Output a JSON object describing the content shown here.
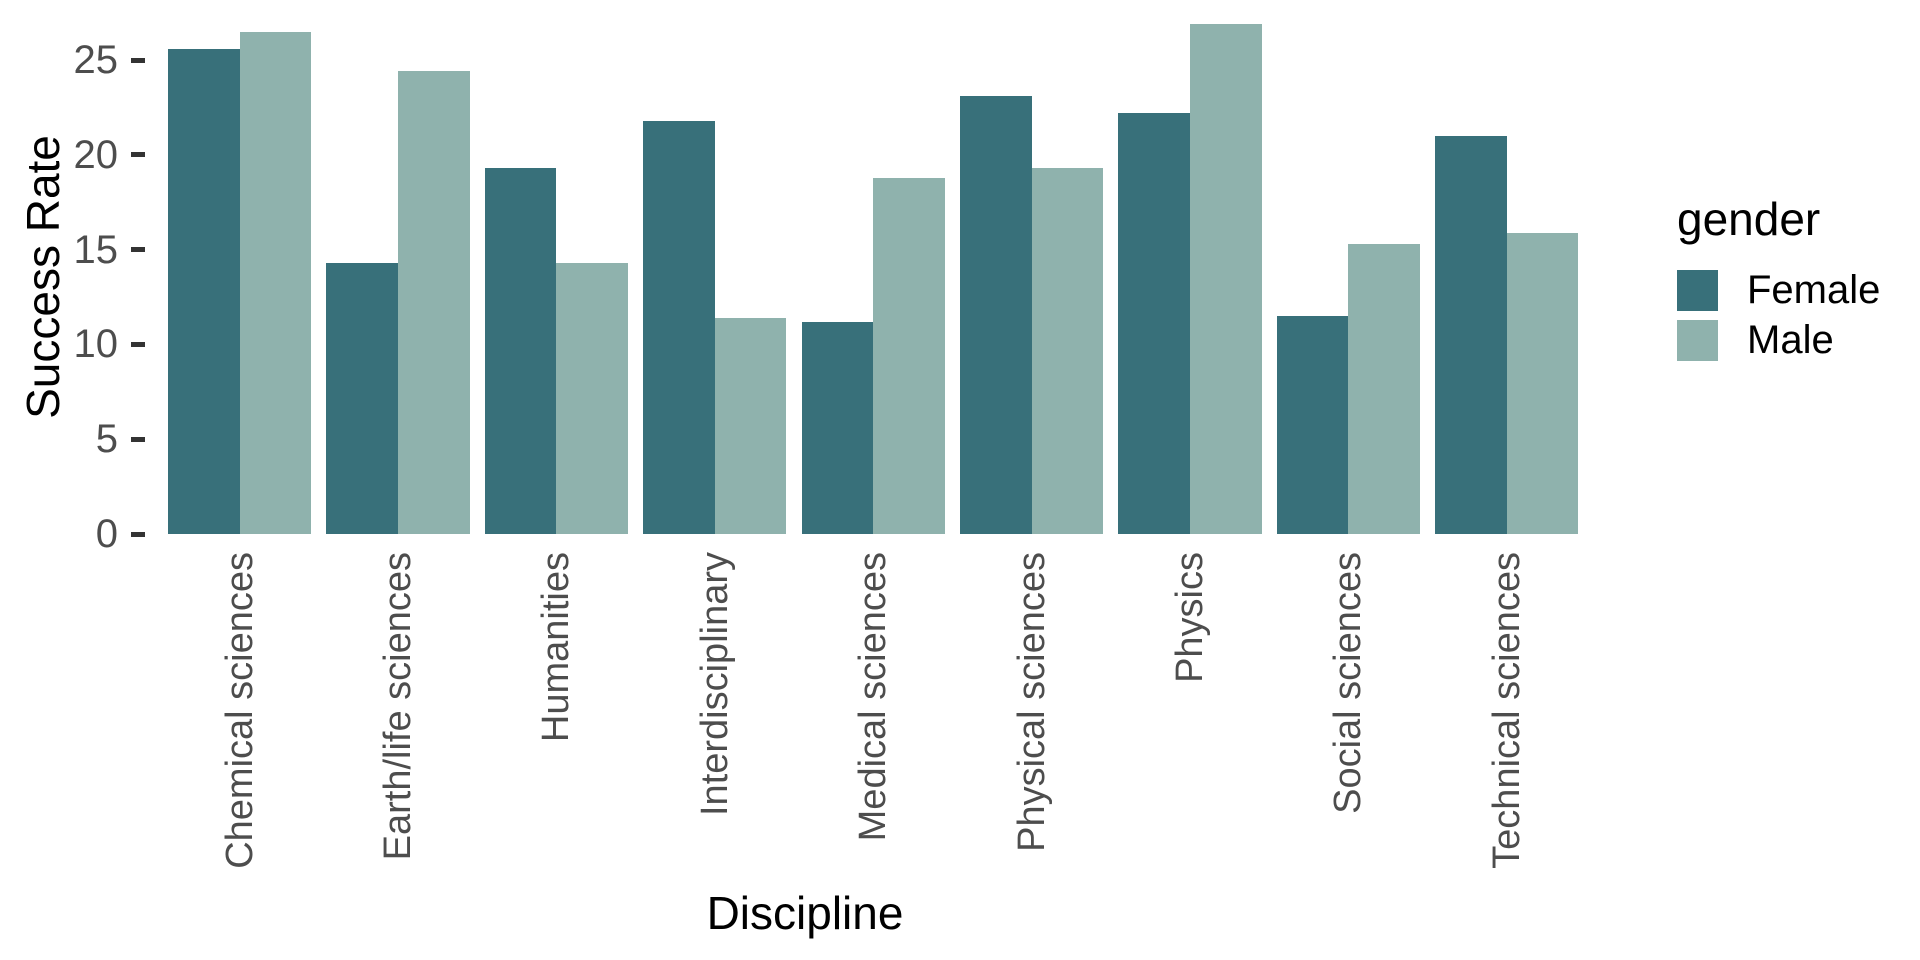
{
  "chart_data": {
    "type": "bar",
    "title": "",
    "xlabel": "Discipline",
    "ylabel": "Success Rate",
    "categories": [
      "Chemical sciences",
      "Earth/life sciences",
      "Humanities",
      "Interdisciplinary",
      "Medical sciences",
      "Physical sciences",
      "Physics",
      "Social sciences",
      "Technical sciences"
    ],
    "series": [
      {
        "name": "Female",
        "color": "#38707A",
        "values": [
          25.6,
          14.3,
          19.3,
          21.8,
          11.2,
          23.1,
          22.2,
          11.5,
          21.0
        ]
      },
      {
        "name": "Male",
        "color": "#8FB2AD",
        "values": [
          26.5,
          24.4,
          14.3,
          11.4,
          18.8,
          19.3,
          26.9,
          15.3,
          15.9
        ]
      }
    ],
    "y_ticks": [
      0,
      5,
      10,
      15,
      20,
      25
    ],
    "ylim": [
      0,
      27.5
    ],
    "grid": false,
    "bar_orientation": "vertical",
    "x_tick_rotation": 90,
    "legend": {
      "title": "gender",
      "position": "right"
    }
  }
}
